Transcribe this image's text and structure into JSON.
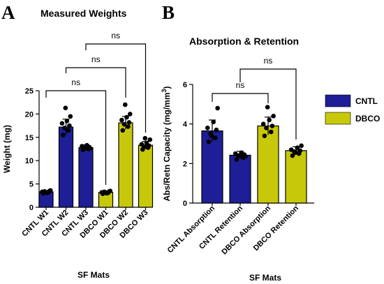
{
  "colors": {
    "CNTL": "#1e1e96",
    "DBCO": "#c8c80a"
  },
  "panel_a": {
    "letter": "A"
  },
  "panel_b": {
    "letter": "B"
  },
  "chart_data": [
    {
      "type": "bar",
      "title": "Measured Weights",
      "xlabel": "SF Mats",
      "ylabel": "Weight (mg)",
      "ylim": [
        0,
        25
      ],
      "yticks": [
        0,
        5,
        10,
        15,
        20,
        25
      ],
      "categories": [
        "CNTL W1",
        "CNTL W2",
        "CNTL W3",
        "DBCO W1",
        "DBCO W2",
        "DBCO W3"
      ],
      "groups": [
        "CNTL",
        "CNTL",
        "CNTL",
        "DBCO",
        "DBCO",
        "DBCO"
      ],
      "values": [
        3.3,
        17.2,
        12.8,
        3.2,
        18.1,
        13.3
      ],
      "errors": [
        0.3,
        1.7,
        0.6,
        0.3,
        1.4,
        0.8
      ],
      "points": [
        [
          3.0,
          3.2,
          3.4,
          3.5,
          3.3,
          3.1,
          3.6,
          3.2
        ],
        [
          15.5,
          16.5,
          17.0,
          17.5,
          18.0,
          18.5,
          19.5,
          21.3
        ],
        [
          12.3,
          12.5,
          12.7,
          12.9,
          13.1,
          13.3,
          12.6,
          12.8
        ],
        [
          2.9,
          3.1,
          3.3,
          3.4,
          3.2,
          3.0,
          3.5,
          3.2
        ],
        [
          16.5,
          17.3,
          17.8,
          18.2,
          18.7,
          19.3,
          20.0,
          22.0
        ],
        [
          12.4,
          12.8,
          13.0,
          13.2,
          13.5,
          13.8,
          14.5,
          14.8
        ]
      ],
      "comparisons": [
        {
          "from": 0,
          "to": 3,
          "label": "ns"
        },
        {
          "from": 1,
          "to": 4,
          "label": "ns"
        },
        {
          "from": 2,
          "to": 5,
          "label": "ns"
        }
      ]
    },
    {
      "type": "bar",
      "title": "Absorption & Retention",
      "xlabel": "SF Mats",
      "ylabel": "Abs/Retn Capacity (mg/mm",
      "ylabel_sup": "3",
      "ylabel_end": ")",
      "ylim": [
        0,
        6
      ],
      "yticks": [
        0,
        2,
        4,
        6
      ],
      "categories": [
        "CNTL Absorption",
        "CNTL Retention",
        "DBCO Absorption",
        "DBCO Retention"
      ],
      "groups": [
        "CNTL",
        "CNTL",
        "DBCO",
        "DBCO"
      ],
      "values": [
        3.65,
        2.42,
        3.9,
        2.65
      ],
      "errors": [
        0.55,
        0.2,
        0.45,
        0.2
      ],
      "points": [
        [
          3.1,
          3.3,
          3.5,
          3.7,
          3.8,
          4.1,
          4.8,
          3.4
        ],
        [
          2.2,
          2.3,
          2.4,
          2.45,
          2.5,
          2.55,
          2.35,
          2.4
        ],
        [
          3.4,
          3.6,
          3.8,
          3.9,
          4.0,
          4.2,
          4.4,
          4.85
        ],
        [
          2.4,
          2.5,
          2.6,
          2.65,
          2.7,
          2.8,
          2.9,
          2.55
        ]
      ],
      "comparisons": [
        {
          "from": 0,
          "to": 2,
          "label": "ns"
        },
        {
          "from": 1,
          "to": 3,
          "label": "ns"
        }
      ],
      "legend": {
        "position": "right",
        "entries": [
          "CNTL",
          "DBCO"
        ]
      }
    }
  ]
}
